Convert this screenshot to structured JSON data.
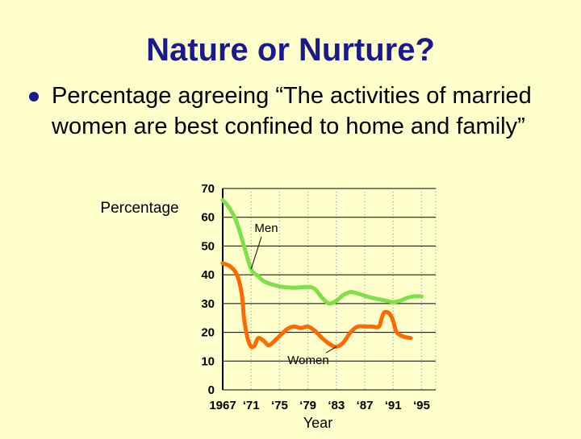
{
  "title": "Nature or Nurture?",
  "bullet": {
    "text": "Percentage agreeing “The activities of married women are best confined to home and family”"
  },
  "colors": {
    "background": "#FFFFCC",
    "title": "#1A1A8C",
    "men": "#7FE04A",
    "women": "#FF6A00"
  },
  "chart_data": {
    "type": "line",
    "title": "",
    "xlabel": "Year",
    "ylabel": "Percentage",
    "xlim": [
      1967,
      1997
    ],
    "ylim": [
      0,
      70
    ],
    "grid": true,
    "x_ticks": [
      {
        "value": 1967,
        "label": "1967"
      },
      {
        "value": 1971,
        "label": "‘71"
      },
      {
        "value": 1975,
        "label": "‘75"
      },
      {
        "value": 1979,
        "label": "‘79"
      },
      {
        "value": 1983,
        "label": "‘83"
      },
      {
        "value": 1987,
        "label": "‘87"
      },
      {
        "value": 1991,
        "label": "‘91"
      },
      {
        "value": 1995,
        "label": "‘95"
      }
    ],
    "y_ticks": [
      0,
      10,
      20,
      30,
      40,
      50,
      60,
      70
    ],
    "series": [
      {
        "name": "Men",
        "color": "#7FE04A",
        "points": [
          [
            1967,
            66
          ],
          [
            1968,
            63
          ],
          [
            1969,
            58
          ],
          [
            1970,
            50
          ],
          [
            1971,
            42
          ],
          [
            1972,
            39.5
          ],
          [
            1973,
            37.5
          ],
          [
            1975,
            36
          ],
          [
            1977,
            35.5
          ],
          [
            1979,
            35.8
          ],
          [
            1980,
            35
          ],
          [
            1981,
            32
          ],
          [
            1982,
            30
          ],
          [
            1983,
            31
          ],
          [
            1984,
            33
          ],
          [
            1985,
            34
          ],
          [
            1986,
            33.5
          ],
          [
            1988,
            32
          ],
          [
            1990,
            31
          ],
          [
            1991,
            30.5
          ],
          [
            1992,
            31
          ],
          [
            1993,
            32
          ],
          [
            1994,
            32.5
          ],
          [
            1995,
            32.5
          ]
        ]
      },
      {
        "name": "Women",
        "color": "#FF6A00",
        "points": [
          [
            1967,
            44
          ],
          [
            1968,
            43
          ],
          [
            1969,
            40
          ],
          [
            1969.7,
            33
          ],
          [
            1970,
            25
          ],
          [
            1970.5,
            18
          ],
          [
            1971,
            15
          ],
          [
            1971.5,
            15.5
          ],
          [
            1972,
            18
          ],
          [
            1972.8,
            17
          ],
          [
            1973.5,
            15.5
          ],
          [
            1974.5,
            17.5
          ],
          [
            1976,
            21
          ],
          [
            1977,
            22
          ],
          [
            1978,
            21.5
          ],
          [
            1979,
            22
          ],
          [
            1980,
            20.5
          ],
          [
            1981,
            18
          ],
          [
            1982,
            16
          ],
          [
            1983,
            15
          ],
          [
            1984,
            16.5
          ],
          [
            1985,
            20
          ],
          [
            1986,
            22
          ],
          [
            1987,
            22
          ],
          [
            1988,
            22
          ],
          [
            1989,
            22
          ],
          [
            1989.4,
            25
          ],
          [
            1989.8,
            27
          ],
          [
            1990.5,
            26.5
          ],
          [
            1991,
            24
          ],
          [
            1991.5,
            20
          ],
          [
            1992.5,
            18.5
          ],
          [
            1993.5,
            18
          ]
        ]
      }
    ],
    "annotations": [
      {
        "text": "Men",
        "series": "Men",
        "at_year": 1971
      },
      {
        "text": "Women",
        "series": "Women",
        "at_year": 1983
      }
    ]
  }
}
